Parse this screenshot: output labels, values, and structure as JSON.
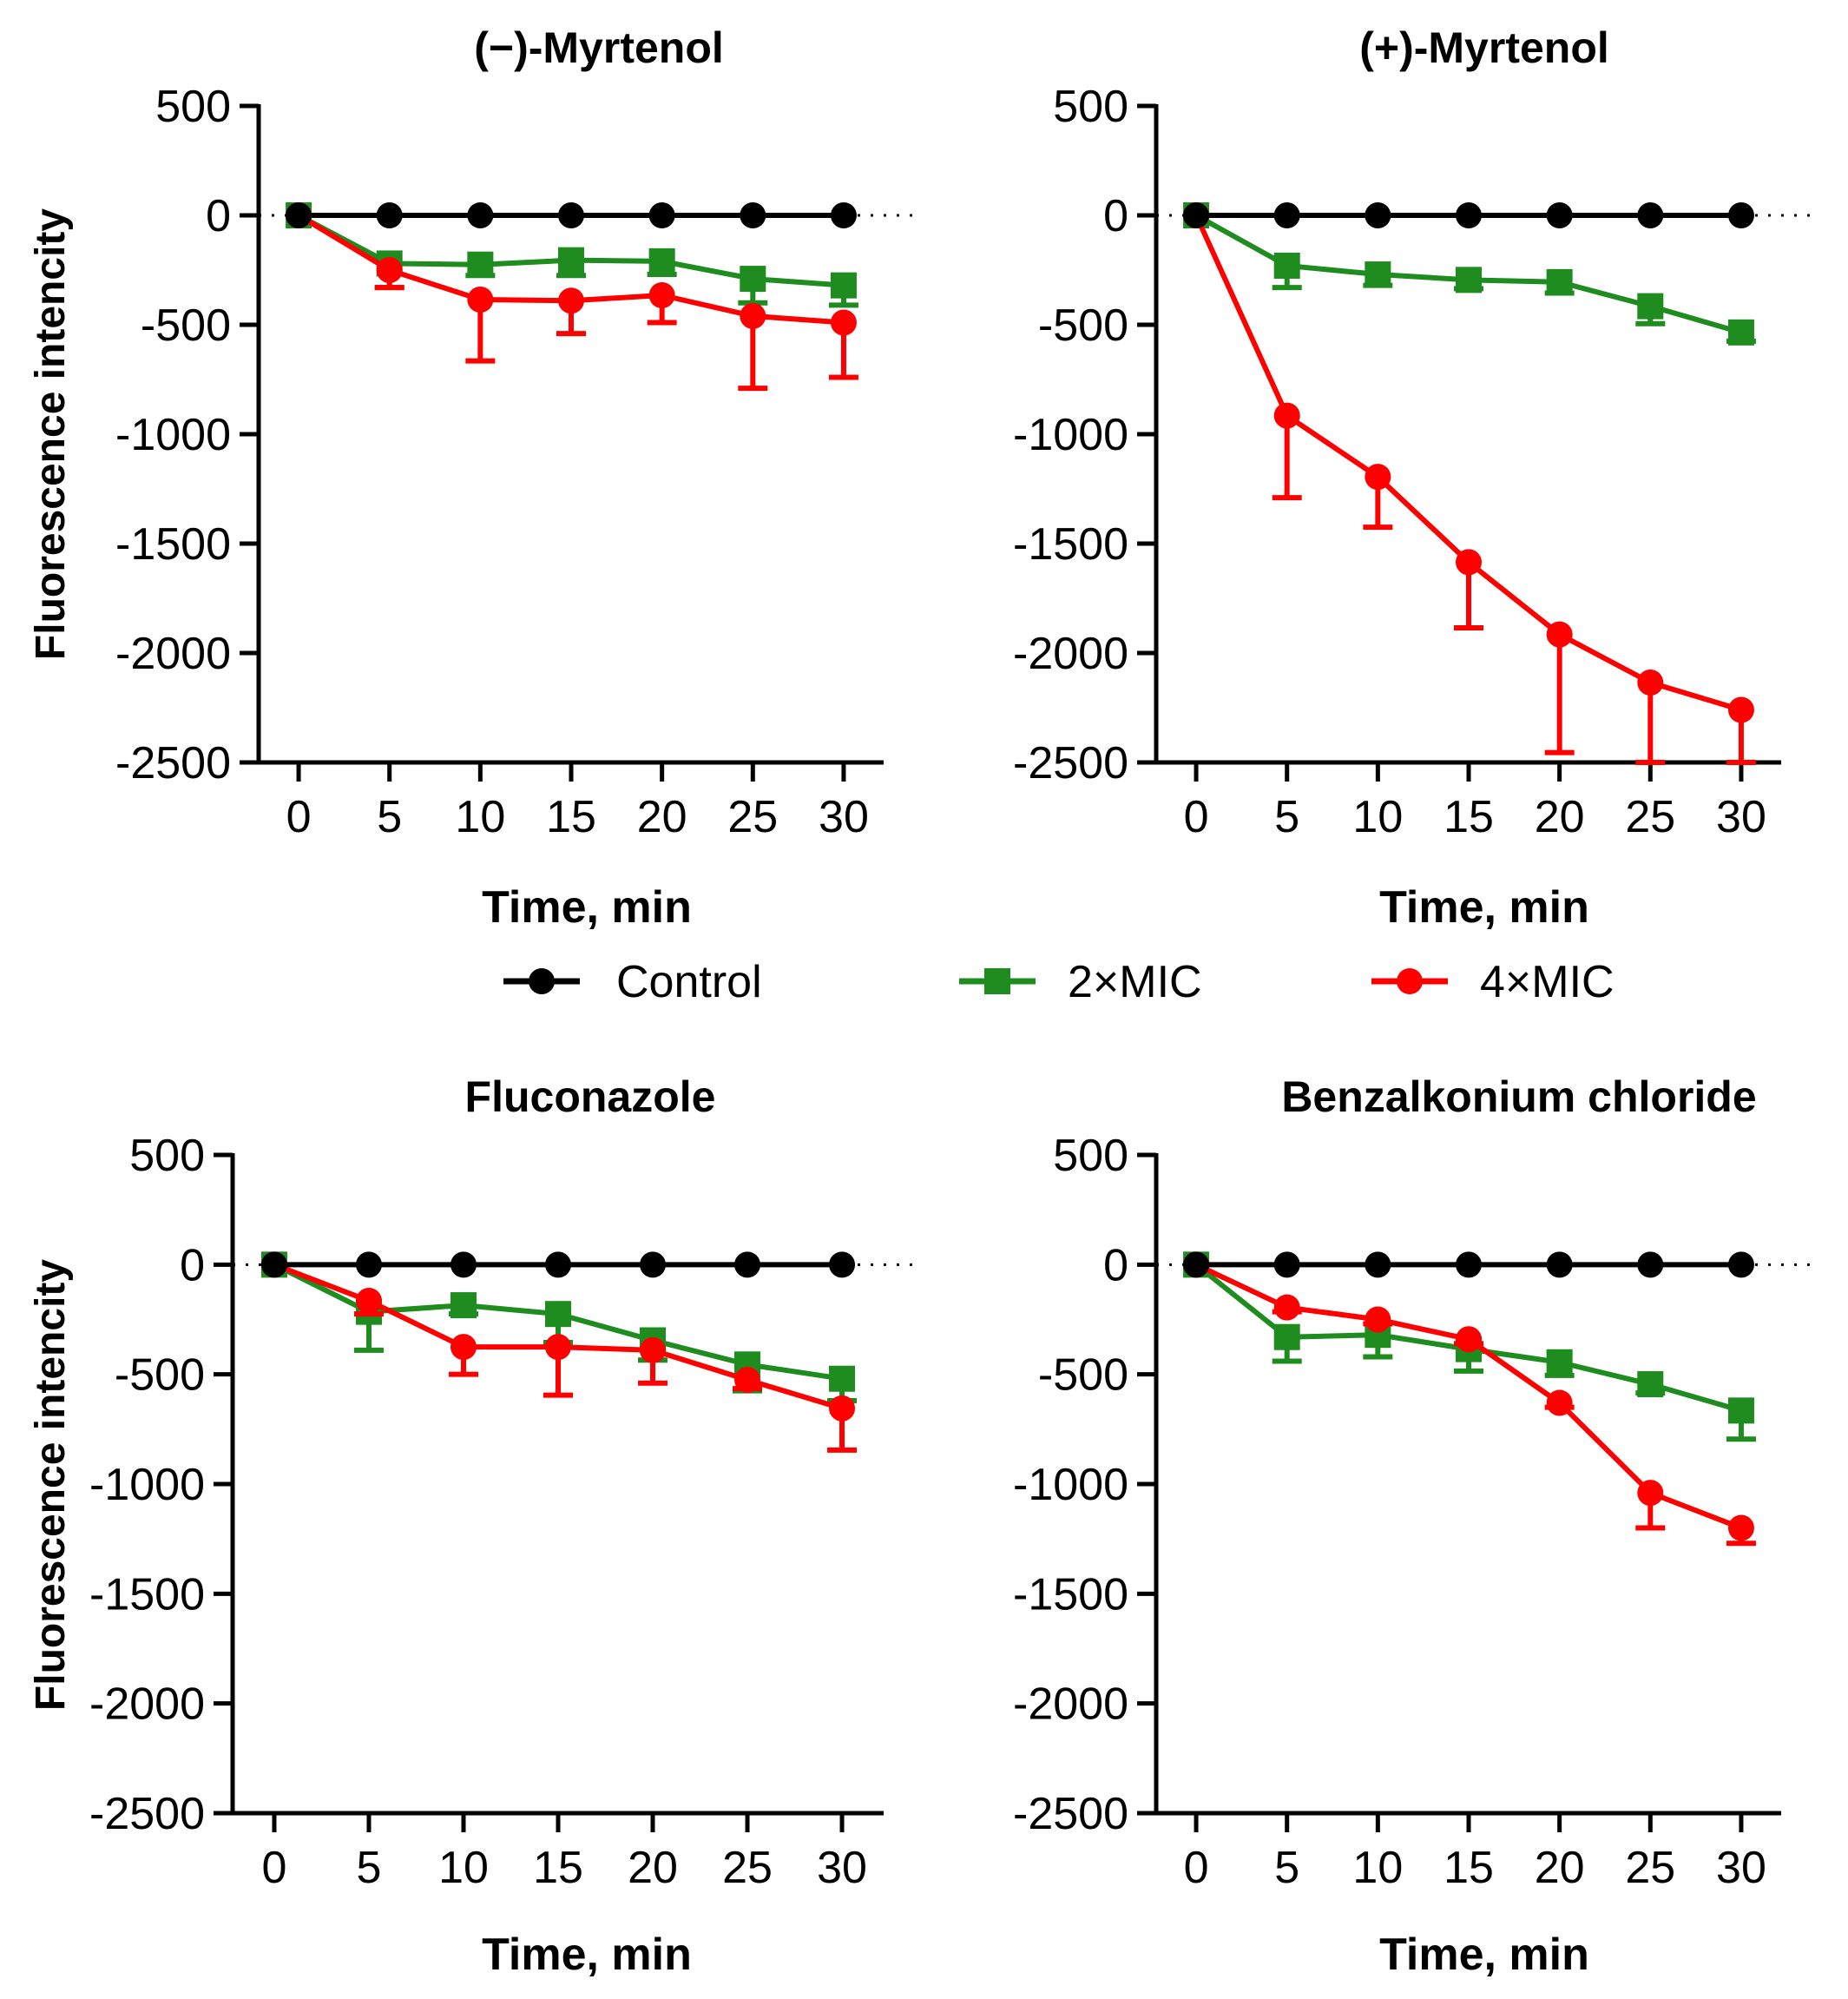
{
  "chart_data": [
    {
      "type": "line",
      "title": "(−)-Myrtenol",
      "xlabel": "Time, min",
      "ylabel": "Fluorescence intencity",
      "x": [
        0,
        5,
        10,
        15,
        20,
        25,
        30
      ],
      "xticks": [
        "0",
        "5",
        "10",
        "15",
        "20",
        "25",
        "30"
      ],
      "yticks": [
        "500",
        "0",
        "-500",
        "-1000",
        "-1500",
        "-2000",
        "-2500"
      ],
      "ylim": [
        -2500,
        500
      ],
      "series": [
        {
          "name": "Control",
          "color": "#000000",
          "marker": "circle",
          "values": [
            0,
            0,
            0,
            0,
            0,
            0,
            0
          ],
          "errors": [
            0,
            0,
            0,
            0,
            0,
            0,
            0
          ]
        },
        {
          "name": "2×MIC",
          "color": "#1e8c1e",
          "marker": "square",
          "values": [
            0,
            -220,
            -225,
            -205,
            -210,
            -290,
            -320
          ],
          "errors": [
            0,
            110,
            50,
            70,
            60,
            110,
            90
          ]
        },
        {
          "name": "4×MIC",
          "color": "#ff0000",
          "marker": "circle",
          "values": [
            0,
            -250,
            -385,
            -390,
            -365,
            -460,
            -490
          ],
          "errors": [
            0,
            80,
            280,
            150,
            125,
            330,
            250
          ]
        }
      ]
    },
    {
      "type": "line",
      "title": "(+)-Myrtenol",
      "xlabel": "Time, min",
      "ylabel": "",
      "x": [
        0,
        5,
        10,
        15,
        20,
        25,
        30
      ],
      "xticks": [
        "0",
        "5",
        "10",
        "15",
        "20",
        "25",
        "30"
      ],
      "yticks": [
        "500",
        "0",
        "-500",
        "-1000",
        "-1500",
        "-2000",
        "-2500"
      ],
      "ylim": [
        -2500,
        500
      ],
      "series": [
        {
          "name": "Control",
          "color": "#000000",
          "marker": "circle",
          "values": [
            0,
            0,
            0,
            0,
            0,
            0,
            0
          ],
          "errors": [
            0,
            0,
            0,
            0,
            0,
            0,
            0
          ]
        },
        {
          "name": "2×MIC",
          "color": "#1e8c1e",
          "marker": "square",
          "values": [
            0,
            -230,
            -270,
            -295,
            -305,
            -415,
            -535
          ],
          "errors": [
            0,
            100,
            50,
            40,
            50,
            80,
            40
          ]
        },
        {
          "name": "4×MIC",
          "color": "#ff0000",
          "marker": "circle",
          "values": [
            0,
            -915,
            -1195,
            -1585,
            -1915,
            -2135,
            -2260
          ],
          "errors": [
            0,
            375,
            230,
            300,
            540,
            380,
            250
          ]
        }
      ]
    },
    {
      "type": "line",
      "title": "Fluconazole",
      "xlabel": "Time, min",
      "ylabel": "Fluorescence intencity",
      "x": [
        0,
        5,
        10,
        15,
        20,
        25,
        30
      ],
      "xticks": [
        "0",
        "5",
        "10",
        "15",
        "20",
        "25",
        "30"
      ],
      "yticks": [
        "500",
        "0",
        "-500",
        "-1000",
        "-1500",
        "-2000",
        "-2500"
      ],
      "ylim": [
        -2500,
        500
      ],
      "series": [
        {
          "name": "Control",
          "color": "#000000",
          "marker": "circle",
          "values": [
            0,
            0,
            0,
            0,
            0,
            0,
            0
          ],
          "errors": [
            0,
            0,
            0,
            0,
            0,
            0,
            0
          ]
        },
        {
          "name": "2×MIC",
          "color": "#1e8c1e",
          "marker": "square",
          "values": [
            0,
            -215,
            -185,
            -225,
            -345,
            -455,
            -520
          ],
          "errors": [
            0,
            175,
            40,
            130,
            90,
            120,
            100
          ]
        },
        {
          "name": "4×MIC",
          "color": "#ff0000",
          "marker": "circle",
          "values": [
            0,
            -165,
            -375,
            -375,
            -390,
            -525,
            -655
          ],
          "errors": [
            0,
            60,
            125,
            220,
            150,
            40,
            190
          ]
        }
      ]
    },
    {
      "type": "line",
      "title": "Benzalkonium chloride",
      "xlabel": "Time, min",
      "ylabel": "",
      "x": [
        0,
        5,
        10,
        15,
        20,
        25,
        30
      ],
      "xticks": [
        "0",
        "5",
        "10",
        "15",
        "20",
        "25",
        "30"
      ],
      "yticks": [
        "500",
        "0",
        "-500",
        "-1000",
        "-1500",
        "-2000",
        "-2500"
      ],
      "ylim": [
        -2500,
        500
      ],
      "series": [
        {
          "name": "Control",
          "color": "#000000",
          "marker": "circle",
          "values": [
            0,
            0,
            0,
            0,
            0,
            0,
            0
          ],
          "errors": [
            0,
            0,
            0,
            0,
            0,
            0,
            0
          ]
        },
        {
          "name": "2×MIC",
          "color": "#1e8c1e",
          "marker": "square",
          "values": [
            0,
            -330,
            -320,
            -385,
            -445,
            -545,
            -665
          ],
          "errors": [
            0,
            110,
            100,
            100,
            60,
            40,
            130
          ]
        },
        {
          "name": "4×MIC",
          "color": "#ff0000",
          "marker": "circle",
          "values": [
            0,
            -195,
            -250,
            -340,
            -630,
            -1040,
            -1200
          ],
          "errors": [
            0,
            20,
            20,
            20,
            20,
            160,
            70
          ]
        }
      ]
    }
  ],
  "legend": [
    {
      "label": "Control",
      "color": "#000000",
      "marker": "circle"
    },
    {
      "label": "2×MIC",
      "color": "#1e8c1e",
      "marker": "square"
    },
    {
      "label": "4×MIC",
      "color": "#ff0000",
      "marker": "circle"
    }
  ]
}
